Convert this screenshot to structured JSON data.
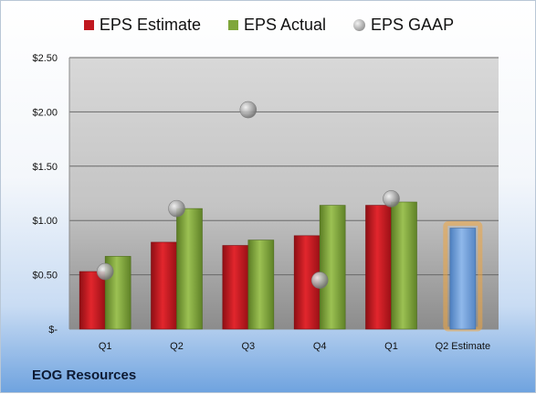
{
  "chart_data": {
    "type": "bar",
    "title": "",
    "xlabel": "",
    "ylabel": "",
    "categories": [
      "Q1",
      "Q2",
      "Q3",
      "Q4",
      "Q1",
      "Q2 Estimate"
    ],
    "series": [
      {
        "name": "EPS Estimate",
        "type": "bar",
        "color": "#c0181f",
        "values": [
          0.53,
          0.8,
          0.77,
          0.86,
          1.14,
          null
        ]
      },
      {
        "name": "EPS Actual",
        "type": "bar",
        "color": "#7fa63a",
        "values": [
          0.67,
          1.11,
          0.82,
          1.14,
          1.17,
          null
        ]
      },
      {
        "name": "EPS GAAP",
        "type": "scatter",
        "color": "#9a9a9a",
        "values": [
          0.53,
          1.11,
          2.02,
          0.45,
          1.2,
          null
        ]
      }
    ],
    "estimate_bar": {
      "category": "Q2 Estimate",
      "value": 0.93,
      "color": "#6f9fd8",
      "glow": "#f0a640"
    },
    "ylim": [
      0,
      2.5
    ],
    "yticks": [
      0,
      0.5,
      1.0,
      1.5,
      2.0,
      2.5
    ],
    "ytick_labels": [
      "$-",
      "$0.50",
      "$1.00",
      "$1.50",
      "$2.00",
      "$2.50"
    ],
    "grid": true,
    "legend_position": "top-center"
  },
  "footer": {
    "company": "EOG Resources"
  }
}
